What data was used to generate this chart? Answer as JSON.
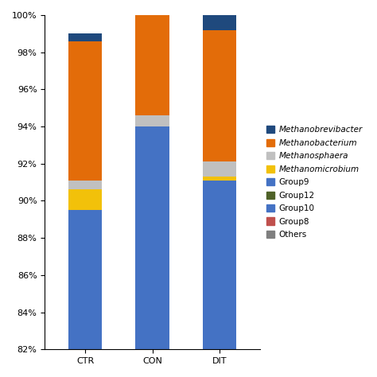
{
  "categories": [
    "CTR",
    "CON",
    "DIT"
  ],
  "ylim": [
    82,
    100
  ],
  "yticks": [
    82,
    84,
    86,
    88,
    90,
    92,
    94,
    96,
    98,
    100
  ],
  "segments": [
    {
      "label": "Others",
      "color": "#7f7f7f",
      "values": [
        0.0,
        0.0,
        0.0
      ]
    },
    {
      "label": "Group8",
      "color": "#c0504d",
      "values": [
        0.0,
        0.0,
        0.0
      ]
    },
    {
      "label": "Group10",
      "color": "#4472c4",
      "values": [
        7.5,
        12.0,
        9.1
      ]
    },
    {
      "label": "Group12",
      "color": "#4f6228",
      "values": [
        0.0,
        0.0,
        0.0
      ]
    },
    {
      "label": "Group9",
      "color": "#4472c4",
      "values": [
        0.0,
        0.0,
        0.0
      ]
    },
    {
      "label": "Methanomicrobium",
      "color": "#f2c10a",
      "values": [
        1.1,
        0.0,
        0.2
      ]
    },
    {
      "label": "Methanosphaera",
      "color": "#c0c0c0",
      "values": [
        0.5,
        0.6,
        0.8
      ]
    },
    {
      "label": "Methanobacterium",
      "color": "#e36c09",
      "values": [
        7.5,
        5.7,
        7.1
      ]
    },
    {
      "label": "Methanobrevibacter",
      "color": "#1f497d",
      "values": [
        0.4,
        0.7,
        0.8
      ]
    }
  ],
  "base": 82,
  "bar_width": 0.5,
  "legend_fontsize": 7.5,
  "tick_fontsize": 8,
  "label_fontsize": 8
}
